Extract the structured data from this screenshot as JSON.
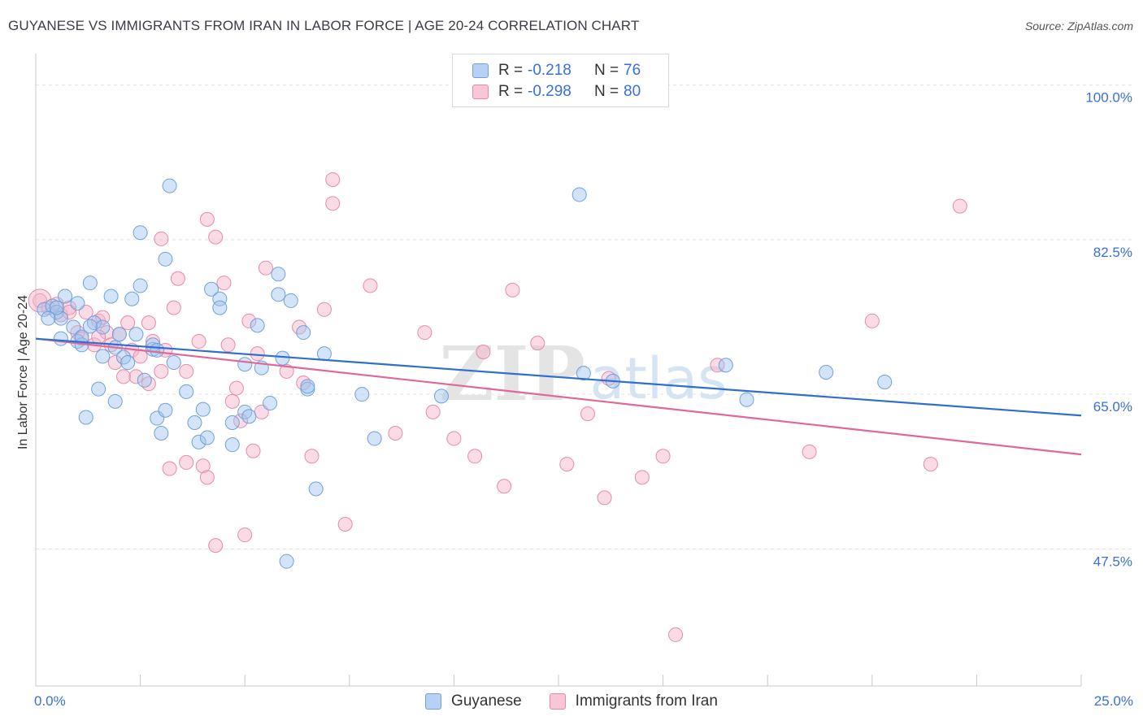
{
  "title": "GUYANESE VS IMMIGRANTS FROM IRAN IN LABOR FORCE | AGE 20-24 CORRELATION CHART",
  "source": "Source: ZipAtlas.com",
  "watermark": {
    "zip": "ZIP",
    "atlas": "atlas"
  },
  "legend": {
    "rows": [
      {
        "r_label": "R =",
        "r_value": "-0.218",
        "n_label": "N =",
        "n_value": "76"
      },
      {
        "r_label": "R =",
        "r_value": "-0.298",
        "n_label": "N =",
        "n_value": "80"
      }
    ]
  },
  "bottom_legend": {
    "series1": "Guyanese",
    "series2": "Immigrants from Iran"
  },
  "colors": {
    "series1_fill": "rgba(160,196,240,0.45)",
    "series1_stroke": "#6fa0dd",
    "series1_line": "#2f6fcf",
    "series2_fill": "rgba(246,178,200,0.45)",
    "series2_stroke": "#e68aa8",
    "series2_line": "#e0679a",
    "axis_text": "#3a6fd8",
    "grid": "#e2e2e2"
  },
  "chart_data": {
    "type": "scatter",
    "title": "GUYANESE VS IMMIGRANTS FROM IRAN IN LABOR FORCE | AGE 20-24 CORRELATION CHART",
    "xlabel": "",
    "ylabel": "In Labor Force | Age 20-24",
    "xlim": [
      0,
      25
    ],
    "ylim": [
      32,
      103
    ],
    "x_tick_labels": [
      "0.0%",
      "25.0%"
    ],
    "y_ticks": [
      47.5,
      65.0,
      82.5,
      100.0
    ],
    "y_tick_labels": [
      "47.5%",
      "65.0%",
      "82.5%",
      "100.0%"
    ],
    "grid": true,
    "legend_position": "top-center",
    "series": [
      {
        "name": "Guyanese",
        "R": -0.218,
        "N": 76,
        "trend": {
          "x": [
            0,
            25
          ],
          "y": [
            71.3,
            62.6
          ]
        },
        "points": [
          [
            0.2,
            74.6
          ],
          [
            0.4,
            75.0
          ],
          [
            0.5,
            74.3
          ],
          [
            0.6,
            73.6
          ],
          [
            0.7,
            76.1
          ],
          [
            0.5,
            74.8
          ],
          [
            0.3,
            73.6
          ],
          [
            0.6,
            71.3
          ],
          [
            0.9,
            72.6
          ],
          [
            1.0,
            71.0
          ],
          [
            1.0,
            75.3
          ],
          [
            1.1,
            70.6
          ],
          [
            1.2,
            62.4
          ],
          [
            1.3,
            77.6
          ],
          [
            1.4,
            73.1
          ],
          [
            1.5,
            65.6
          ],
          [
            1.6,
            72.6
          ],
          [
            1.6,
            69.3
          ],
          [
            1.8,
            76.1
          ],
          [
            1.9,
            64.2
          ],
          [
            1.9,
            70.3
          ],
          [
            2.0,
            71.8
          ],
          [
            2.1,
            69.2
          ],
          [
            2.2,
            68.6
          ],
          [
            2.3,
            75.8
          ],
          [
            2.4,
            71.8
          ],
          [
            2.5,
            77.3
          ],
          [
            2.5,
            83.3
          ],
          [
            2.6,
            66.6
          ],
          [
            2.8,
            70.1
          ],
          [
            2.8,
            70.6
          ],
          [
            2.9,
            70.0
          ],
          [
            2.9,
            62.3
          ],
          [
            3.0,
            60.6
          ],
          [
            3.1,
            63.2
          ],
          [
            3.1,
            80.3
          ],
          [
            3.2,
            88.6
          ],
          [
            3.3,
            68.6
          ],
          [
            3.6,
            65.3
          ],
          [
            3.8,
            61.8
          ],
          [
            3.9,
            59.6
          ],
          [
            4.0,
            63.3
          ],
          [
            4.1,
            60.1
          ],
          [
            4.2,
            76.9
          ],
          [
            4.4,
            75.8
          ],
          [
            4.4,
            74.8
          ],
          [
            4.7,
            59.3
          ],
          [
            4.7,
            61.8
          ],
          [
            5.0,
            63.0
          ],
          [
            5.0,
            68.4
          ],
          [
            5.3,
            72.8
          ],
          [
            5.4,
            68.0
          ],
          [
            5.6,
            64.0
          ],
          [
            5.8,
            76.3
          ],
          [
            5.8,
            78.6
          ],
          [
            5.9,
            69.1
          ],
          [
            6.1,
            75.6
          ],
          [
            6.4,
            72.0
          ],
          [
            6.5,
            65.6
          ],
          [
            6.7,
            54.3
          ],
          [
            6.9,
            69.6
          ],
          [
            7.8,
            65.0
          ],
          [
            8.1,
            60.0
          ],
          [
            9.7,
            64.8
          ],
          [
            13.0,
            87.6
          ],
          [
            13.1,
            67.4
          ],
          [
            13.8,
            66.5
          ],
          [
            16.5,
            68.3
          ],
          [
            17.0,
            64.4
          ],
          [
            18.9,
            67.5
          ],
          [
            20.3,
            66.4
          ],
          [
            6.0,
            46.1
          ],
          [
            6.5,
            65.9
          ],
          [
            1.1,
            71.5
          ],
          [
            1.3,
            72.7
          ],
          [
            5.1,
            62.5
          ]
        ]
      },
      {
        "name": "Immigrants from Iran",
        "R": -0.298,
        "N": 80,
        "trend": {
          "x": [
            0,
            25
          ],
          "y": [
            71.3,
            58.2
          ]
        },
        "points": [
          [
            0.1,
            75.6
          ],
          [
            0.3,
            74.8
          ],
          [
            0.5,
            75.2
          ],
          [
            0.6,
            74.0
          ],
          [
            0.8,
            74.8
          ],
          [
            1.0,
            72.0
          ],
          [
            1.1,
            71.3
          ],
          [
            1.2,
            74.3
          ],
          [
            1.4,
            70.6
          ],
          [
            1.5,
            73.3
          ],
          [
            1.6,
            73.7
          ],
          [
            1.7,
            72.0
          ],
          [
            1.8,
            70.6
          ],
          [
            1.9,
            68.6
          ],
          [
            2.0,
            71.8
          ],
          [
            2.1,
            67.0
          ],
          [
            2.2,
            73.1
          ],
          [
            2.3,
            70.0
          ],
          [
            2.4,
            67.0
          ],
          [
            2.5,
            69.3
          ],
          [
            2.7,
            73.1
          ],
          [
            2.7,
            66.2
          ],
          [
            2.8,
            71.0
          ],
          [
            3.0,
            82.6
          ],
          [
            3.0,
            67.6
          ],
          [
            3.1,
            70.0
          ],
          [
            3.2,
            56.6
          ],
          [
            3.3,
            74.8
          ],
          [
            3.4,
            78.1
          ],
          [
            3.6,
            57.3
          ],
          [
            3.6,
            67.6
          ],
          [
            3.9,
            71.0
          ],
          [
            4.0,
            56.9
          ],
          [
            4.1,
            55.6
          ],
          [
            4.1,
            84.8
          ],
          [
            4.3,
            82.8
          ],
          [
            4.3,
            47.9
          ],
          [
            4.5,
            77.6
          ],
          [
            4.6,
            70.6
          ],
          [
            4.7,
            64.2
          ],
          [
            4.8,
            65.7
          ],
          [
            4.9,
            62.0
          ],
          [
            5.0,
            49.1
          ],
          [
            5.1,
            73.3
          ],
          [
            5.2,
            58.6
          ],
          [
            5.3,
            69.6
          ],
          [
            5.4,
            63.0
          ],
          [
            5.5,
            79.3
          ],
          [
            6.0,
            67.6
          ],
          [
            6.3,
            72.6
          ],
          [
            6.4,
            66.3
          ],
          [
            6.6,
            58.0
          ],
          [
            6.9,
            74.6
          ],
          [
            7.1,
            89.3
          ],
          [
            7.1,
            86.6
          ],
          [
            7.4,
            50.3
          ],
          [
            8.0,
            77.3
          ],
          [
            8.6,
            60.6
          ],
          [
            9.3,
            72.0
          ],
          [
            9.5,
            63.0
          ],
          [
            10.0,
            60.0
          ],
          [
            10.5,
            58.0
          ],
          [
            10.7,
            69.8
          ],
          [
            11.2,
            54.6
          ],
          [
            11.4,
            76.8
          ],
          [
            12.0,
            70.8
          ],
          [
            12.7,
            57.1
          ],
          [
            13.2,
            62.8
          ],
          [
            13.6,
            53.3
          ],
          [
            13.7,
            66.8
          ],
          [
            14.5,
            55.6
          ],
          [
            15.0,
            58.0
          ],
          [
            15.3,
            37.8
          ],
          [
            16.3,
            68.3
          ],
          [
            18.5,
            58.5
          ],
          [
            20.0,
            73.3
          ],
          [
            21.4,
            57.1
          ],
          [
            22.1,
            86.3
          ],
          [
            0.8,
            74.3
          ],
          [
            1.5,
            71.5
          ]
        ]
      }
    ]
  }
}
